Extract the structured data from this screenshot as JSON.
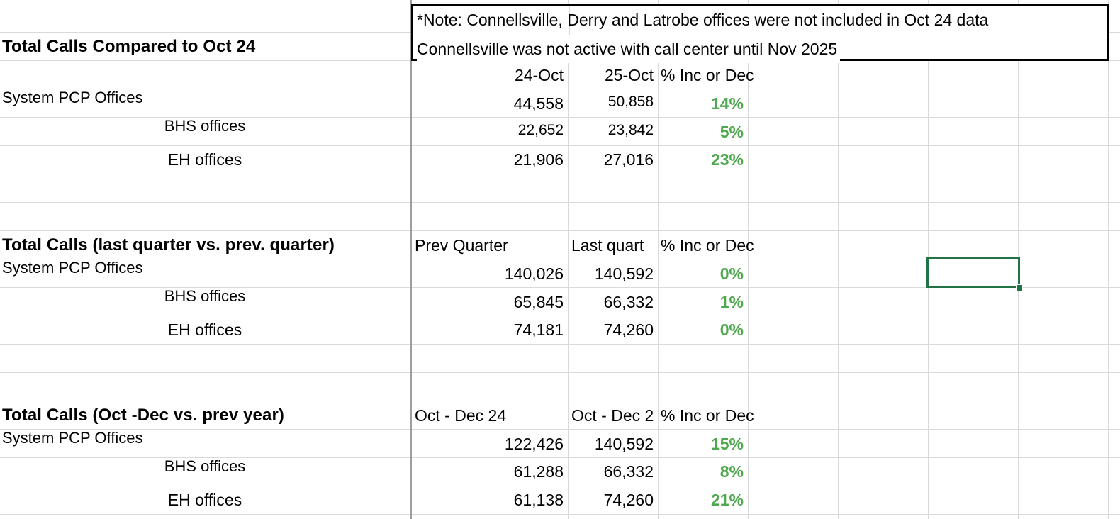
{
  "note": {
    "line1": "*Note: Connellsville, Derry and Latrobe offices were not included in Oct 24 data",
    "line2": "Connellsville was not active with call center until Nov 2025"
  },
  "sections": [
    {
      "title": "Total Calls Compared to Oct 24",
      "col1": "24-Oct",
      "col2": "25-Oct",
      "col3": "% Inc or Dec",
      "rows": [
        {
          "label": "System PCP Offices",
          "v1": "44,558",
          "v2": "50,858",
          "pct": "14%"
        },
        {
          "label": "BHS offices",
          "v1": "22,652",
          "v2": "23,842",
          "pct": "5%"
        },
        {
          "label": "EH offices",
          "v1": "21,906",
          "v2": "27,016",
          "pct": "23%"
        }
      ]
    },
    {
      "title": "Total Calls (last quarter vs. prev. quarter)",
      "col1": "Prev Quarter",
      "col2": "Last quart",
      "col3": "% Inc or Dec",
      "rows": [
        {
          "label": "System PCP Offices",
          "v1": "140,026",
          "v2": "140,592",
          "pct": "0%"
        },
        {
          "label": "BHS offices",
          "v1": "65,845",
          "v2": "66,332",
          "pct": "1%"
        },
        {
          "label": "EH offices",
          "v1": "74,181",
          "v2": "74,260",
          "pct": "0%"
        }
      ]
    },
    {
      "title": "Total Calls (Oct -Dec vs. prev year)",
      "col1": "Oct - Dec 24",
      "col2": "Oct - Dec 2",
      "col3": "% Inc or Dec",
      "rows": [
        {
          "label": "System PCP Offices",
          "v1": "122,426",
          "v2": "140,592",
          "pct": "15%"
        },
        {
          "label": "BHS offices",
          "v1": "61,288",
          "v2": "66,332",
          "pct": "8%"
        },
        {
          "label": "EH offices",
          "v1": "61,138",
          "v2": "74,260",
          "pct": "21%"
        }
      ]
    }
  ],
  "colors": {
    "grid": "#dadada",
    "positive_pct": "#4ea84d",
    "selection": "#217346"
  }
}
